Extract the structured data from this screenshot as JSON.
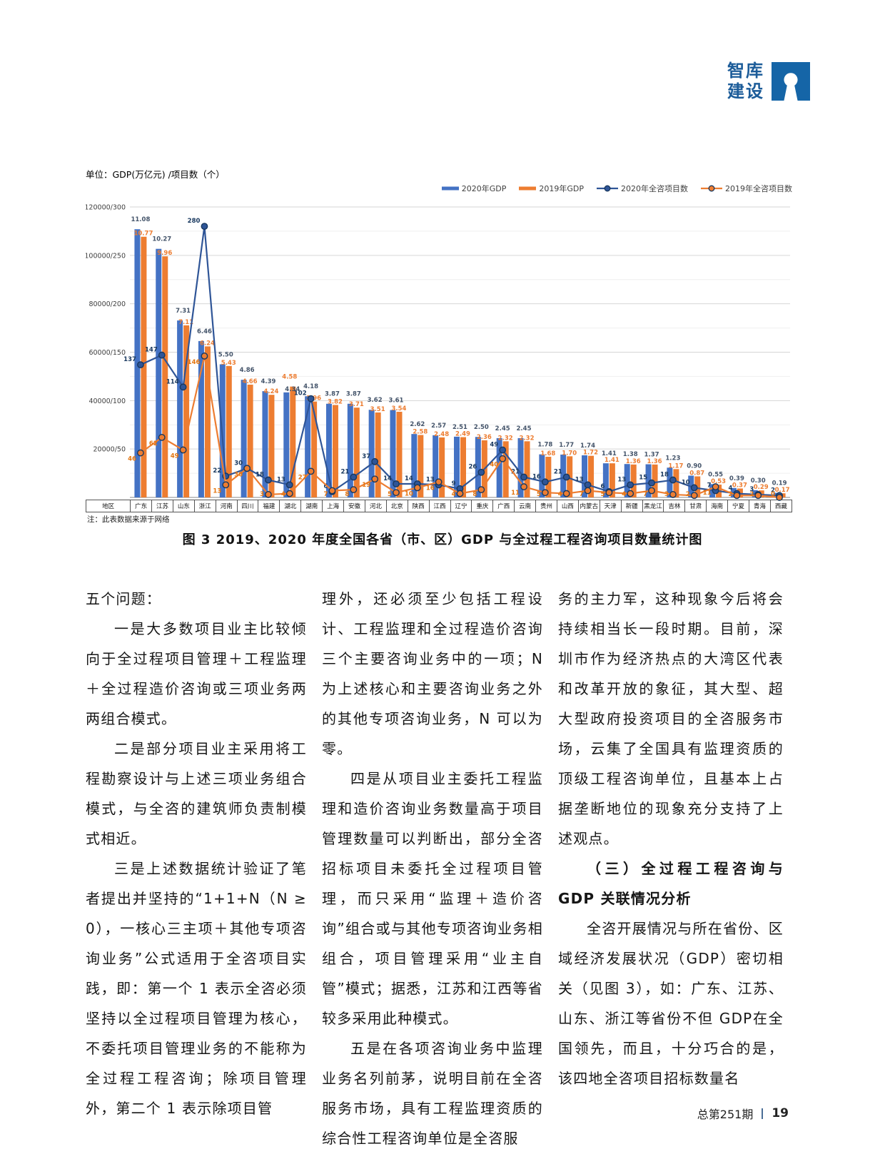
{
  "logo": {
    "line1": "智库",
    "line2": "建设",
    "color": "#1c5c99",
    "icon": "keyhole-icon"
  },
  "chart": {
    "unit_label": "单位：GDP(万亿元) /项目数（个）",
    "y_axis_labels": [
      "120000/300",
      "100000/250",
      "80000/200",
      "60000/150",
      "40000/100",
      "20000/50"
    ],
    "region_header": "地区",
    "note": "注：此表数据来源于网络",
    "caption": "图 3  2019、2020 年度全国各省（市、区）GDP 与全过程工程咨询项目数量统计图",
    "colors": {
      "bar_2020": "#4472c4",
      "bar_2019": "#ed7d31",
      "line_2020": "#2f5597",
      "line_2019": "#ed7d31",
      "bar_label_2020": "#44546a",
      "bar_label_2019": "#ed7d31",
      "line_label_2020": "#17375e",
      "line_label_2019": "#e4750f",
      "marker_stroke": "#17375e",
      "grid_major": "#d6d6d6",
      "grid_minor": "#efefef",
      "baseline": "#8a8a8a"
    }
  },
  "chart_data": {
    "type": "bar+line combo",
    "title": "2019、2020年度全国各省（市、区）GDP与全过程工程咨询项目数量统计图",
    "y_left_label": "GDP(万亿元)",
    "y_right_label": "项目数（个）",
    "y_left_max": 120000,
    "y_right_max": 300,
    "grid": true,
    "legend_position": "top-right",
    "categories": [
      "广东",
      "江苏",
      "山东",
      "浙江",
      "河南",
      "四川",
      "福建",
      "湖北",
      "湖南",
      "上海",
      "安徽",
      "河北",
      "北京",
      "陕西",
      "江西",
      "辽宁",
      "重庆",
      "广西",
      "云南",
      "贵州",
      "山西",
      "内蒙古",
      "天津",
      "新疆",
      "黑龙江",
      "吉林",
      "甘肃",
      "海南",
      "宁夏",
      "青海",
      "西藏"
    ],
    "series": [
      {
        "name": "2020年GDP",
        "type": "bar",
        "unit": "万亿元",
        "values": [
          11.08,
          10.27,
          7.31,
          6.46,
          5.5,
          4.86,
          4.39,
          4.34,
          4.18,
          3.87,
          3.87,
          3.62,
          3.61,
          2.62,
          2.57,
          2.51,
          2.5,
          2.45,
          2.45,
          1.78,
          1.77,
          1.74,
          1.41,
          1.38,
          1.37,
          1.23,
          0.9,
          0.55,
          0.39,
          0.3,
          0.19
        ]
      },
      {
        "name": "2019年GDP",
        "type": "bar",
        "unit": "万亿元",
        "values": [
          10.77,
          9.96,
          7.11,
          6.24,
          5.43,
          4.66,
          4.24,
          4.58,
          3.96,
          3.82,
          3.71,
          3.51,
          3.54,
          2.58,
          2.48,
          2.49,
          2.36,
          2.32,
          2.32,
          1.68,
          1.7,
          1.72,
          1.41,
          1.36,
          1.36,
          1.17,
          0.87,
          0.53,
          0.37,
          0.29,
          0.17
        ]
      },
      {
        "name": "2020年全咨项目数",
        "type": "line",
        "unit": "个",
        "values": [
          137,
          147,
          114,
          280,
          22,
          30,
          18,
          13,
          102,
          6,
          21,
          37,
          14,
          14,
          13,
          9,
          26,
          49,
          21,
          16,
          21,
          13,
          6,
          13,
          15,
          18,
          10,
          7,
          4,
          3,
          2
        ]
      },
      {
        "name": "2019年全咨项目数",
        "type": "line",
        "unit": "个",
        "values": [
          46,
          62,
          49,
          146,
          13,
          30,
          3,
          4,
          27,
          7,
          8,
          19,
          5,
          10,
          16,
          4,
          8,
          40,
          11,
          5,
          4,
          7,
          5,
          4,
          7,
          3,
          2,
          11,
          2,
          2,
          0
        ]
      }
    ]
  },
  "body": {
    "columns": [
      {
        "paragraphs": [
          {
            "text": "五个问题："
          },
          {
            "text": "一是大多数项目业主比较倾向于全过程项目管理＋工程监理＋全过程造价咨询或三项业务两两组合模式。"
          },
          {
            "text": "二是部分项目业主采用将工程勘察设计与上述三项业务组合模式，与全咨的建筑师负责制模式相近。"
          },
          {
            "text": "三是上述数据统计验证了笔者提出并坚持的“1+1+N（N ≥ 0），一核心三主项＋其他专项咨询业务”公式适用于全咨项目实践，即：第一个 1 表示全咨必须坚持以全过程项目管理为核心，不委托项目管理业务的不能称为全过程工程咨询；除项目管理外，第二个 1 表示除项目管"
          }
        ]
      },
      {
        "paragraphs": [
          {
            "text": "理外，还必须至少包括工程设计、工程监理和全过程造价咨询三个主要咨询业务中的一项；N 为上述核心和主要咨询业务之外的其他专项咨询业务，N 可以为零。"
          },
          {
            "text": "四是从项目业主委托工程监理和造价咨询业务数量高于项目管理数量可以判断出，部分全咨招标项目未委托全过程项目管理，而只采用“监理＋造价咨询”组合或与其他专项咨询业务相组合，项目管理采用“业主自管”模式；据悉，江苏和江西等省较多采用此种模式。"
          },
          {
            "text": "五是在各项咨询业务中监理业务名列前茅，说明目前在全咨服务市场，具有工程监理资质的综合性工程咨询单位是全咨服"
          }
        ]
      },
      {
        "paragraphs": [
          {
            "text": "务的主力军，这种现象今后将会持续相当长一段时期。目前，深圳市作为经济热点的大湾区代表和改革开放的象征，其大型、超大型政府投资项目的全咨服务市场，云集了全国具有监理资质的顶级工程咨询单位，且基本上占据垄断地位的现象充分支持了上述观点。"
          },
          {
            "text": "（三）全过程工程咨询与GDP 关联情况分析"
          },
          {
            "text": "全咨开展情况与所在省份、区域经济发展状况（GDP）密切相关（见图 3），如：广东、江苏、山东、浙江等省份不但 GDP在全国领先，而且，十分巧合的是，该四地全咨项目招标数量名"
          }
        ]
      }
    ]
  },
  "footer": {
    "issue": "总第251期",
    "page": "19"
  }
}
